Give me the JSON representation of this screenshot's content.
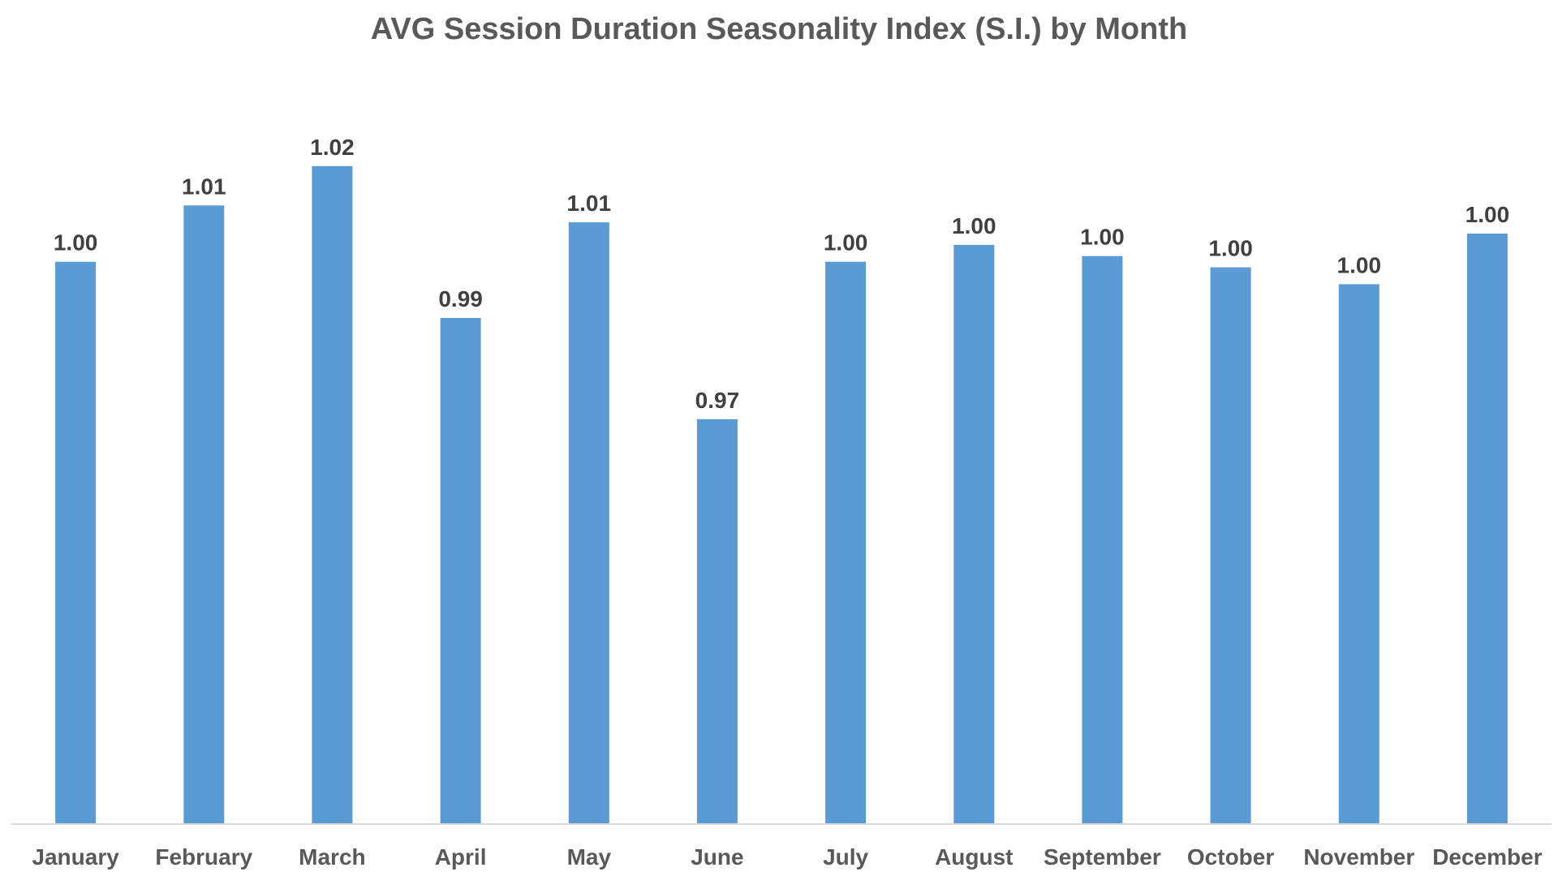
{
  "chart_data": {
    "type": "bar",
    "title": "AVG Session Duration Seasonality Index (S.I.) by Month",
    "xlabel": "",
    "ylabel": "",
    "categories": [
      "January",
      "February",
      "March",
      "April",
      "May",
      "June",
      "July",
      "August",
      "September",
      "October",
      "November",
      "December"
    ],
    "values": [
      1.0,
      1.01,
      1.017,
      0.99,
      1.007,
      0.972,
      1.0,
      1.003,
      1.001,
      0.999,
      0.996,
      1.005
    ],
    "data_labels": [
      "1.00",
      "1.01",
      "1.02",
      "0.99",
      "1.01",
      "0.97",
      "1.00",
      "1.00",
      "1.00",
      "1.00",
      "1.00",
      "1.00"
    ],
    "ylim": [
      0.9,
      1.02
    ],
    "grid": false,
    "legend": "none",
    "colors": {
      "bar": "#5b9bd5",
      "title": "#595959",
      "axis_line": "#d9d9d9"
    }
  }
}
